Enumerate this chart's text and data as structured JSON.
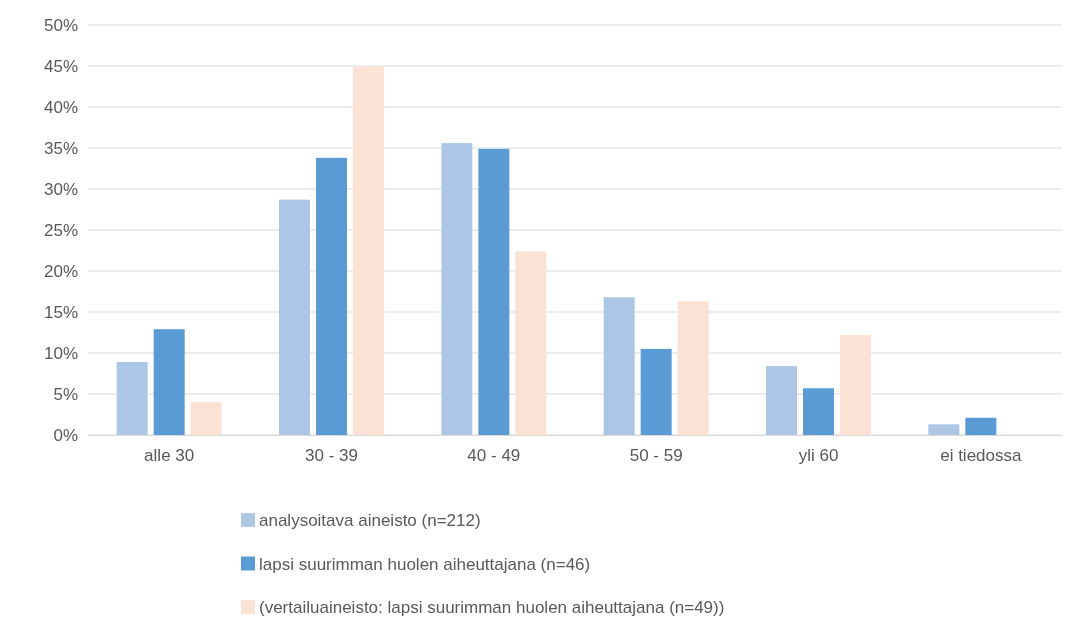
{
  "chart_data": {
    "type": "bar",
    "categories": [
      "alle 30",
      "30 - 39",
      "40 - 49",
      "50 - 59",
      "yli 60",
      "ei tiedossa"
    ],
    "series": [
      {
        "name": "analysoitava aineisto (n=212)",
        "color": "#adc6e5",
        "values": [
          8.9,
          28.7,
          35.6,
          16.8,
          8.4,
          1.3
        ]
      },
      {
        "name": "lapsi suurimman huolen aiheuttajana (n=46)",
        "color": "#5b9bd5",
        "values": [
          12.9,
          33.8,
          34.9,
          10.5,
          5.7,
          2.1
        ]
      },
      {
        "name": "(vertailuaineisto: lapsi suurimman huolen aiheuttajana (n=49))",
        "color": "#fbe2d5",
        "values": [
          4.0,
          44.9,
          22.4,
          16.3,
          12.2,
          null
        ]
      }
    ],
    "ylim": [
      0,
      50
    ],
    "yticks": [
      {
        "value": 0,
        "label": "0%"
      },
      {
        "value": 5,
        "label": "5%"
      },
      {
        "value": 10,
        "label": "10%"
      },
      {
        "value": 15,
        "label": "15%"
      },
      {
        "value": 20,
        "label": "20%"
      },
      {
        "value": 25,
        "label": "25%"
      },
      {
        "value": 30,
        "label": "30%"
      },
      {
        "value": 35,
        "label": "35%"
      },
      {
        "value": 40,
        "label": "40%"
      },
      {
        "value": 45,
        "label": "45%"
      },
      {
        "value": 50,
        "label": "50%"
      }
    ],
    "grid": "y",
    "legend": "bottom"
  }
}
